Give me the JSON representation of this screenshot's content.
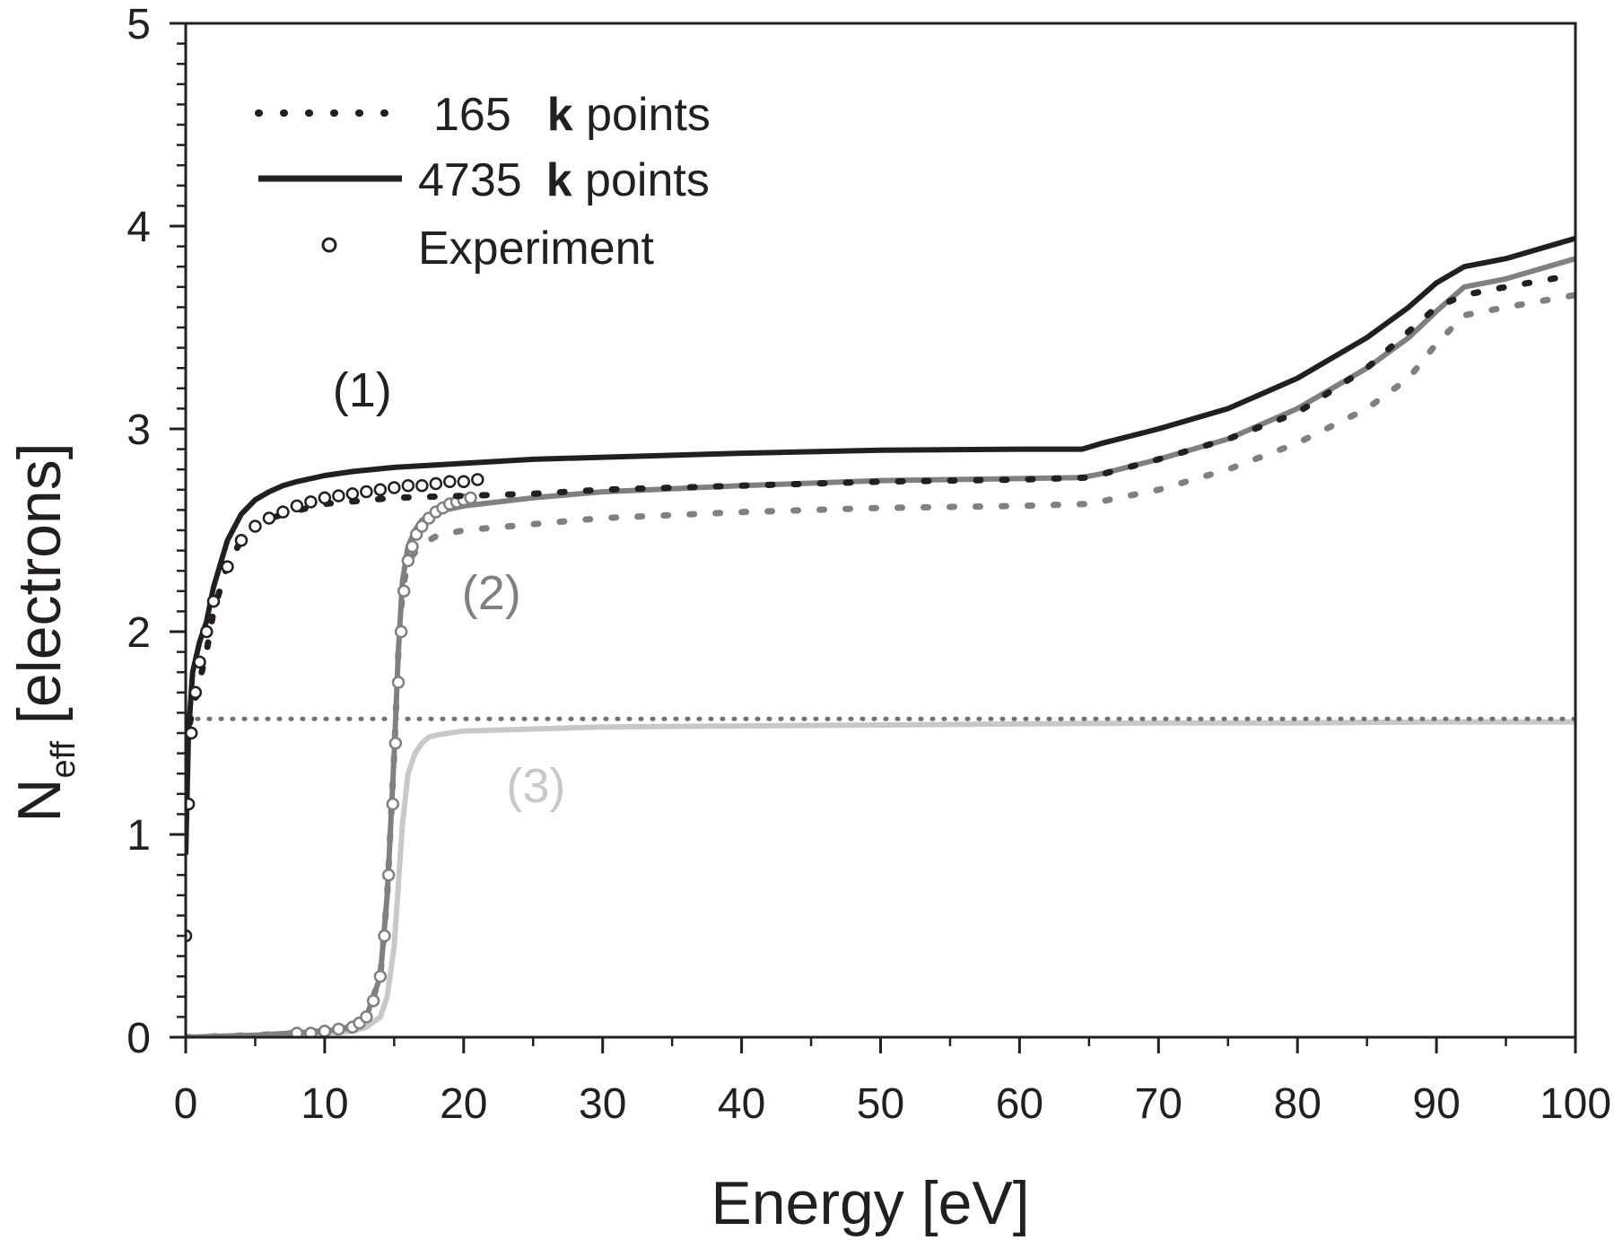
{
  "chart_data": {
    "type": "line",
    "title": "",
    "xlabel": "Energy [eV]",
    "ylabel": {
      "main": "N",
      "sub": "eff",
      "rest": " [electrons]"
    },
    "xlim": [
      0,
      100
    ],
    "ylim": [
      0,
      5
    ],
    "x_ticks": [
      "0",
      "10",
      "20",
      "30",
      "40",
      "50",
      "60",
      "70",
      "80",
      "90",
      "100"
    ],
    "y_ticks": [
      "0",
      "1",
      "2",
      "3",
      "4",
      "5"
    ],
    "grid": false,
    "legend": {
      "placement": "top-left",
      "entries": [
        {
          "count": "165",
          "bold": "k",
          "rest": " points",
          "style": "dotted"
        },
        {
          "count": "4735",
          "bold": "k",
          "rest": " points",
          "style": "solid"
        },
        {
          "count": "",
          "bold": "",
          "rest": "Experiment",
          "style": "markers"
        }
      ]
    },
    "annotations": [
      {
        "text": "(1)",
        "x": 12.7,
        "y": 3.11,
        "color": "#231f20"
      },
      {
        "text": "(2)",
        "x": 22.0,
        "y": 2.11,
        "color": "#808080"
      },
      {
        "text": "(3)",
        "x": 25.2,
        "y": 1.16,
        "color": "#c8c8c8"
      }
    ],
    "colors": {
      "black": "#231f20",
      "gray": "#808080",
      "lightgray": "#c8c8c8",
      "dotted_flat": "#707070"
    },
    "series": [
      {
        "group": "(1)",
        "style": "solid",
        "color": "#231f20",
        "x": [
          0,
          0.2,
          0.5,
          1,
          1.5,
          2,
          3,
          4,
          5,
          6,
          7,
          8,
          10,
          12,
          15,
          20,
          25,
          30,
          40,
          50,
          60,
          64.5,
          66,
          70,
          75,
          80,
          85,
          88,
          90,
          92,
          95,
          100
        ],
        "y": [
          0.9,
          1.5,
          1.8,
          1.95,
          2.05,
          2.22,
          2.45,
          2.58,
          2.65,
          2.69,
          2.72,
          2.74,
          2.77,
          2.79,
          2.81,
          2.83,
          2.85,
          2.86,
          2.88,
          2.895,
          2.9,
          2.9,
          2.93,
          3.0,
          3.1,
          3.25,
          3.45,
          3.6,
          3.72,
          3.8,
          3.84,
          3.94
        ]
      },
      {
        "group": "(1)",
        "style": "dotted",
        "color": "#231f20",
        "x": [
          0.3,
          0.8,
          1.5,
          2,
          3,
          4,
          5,
          7,
          10,
          15,
          20,
          25,
          30,
          40,
          50,
          60,
          65,
          70,
          75,
          80,
          85,
          88,
          90,
          92,
          95,
          100
        ],
        "y": [
          1.55,
          1.7,
          1.9,
          2.1,
          2.33,
          2.45,
          2.53,
          2.58,
          2.63,
          2.66,
          2.67,
          2.68,
          2.7,
          2.72,
          2.74,
          2.75,
          2.76,
          2.85,
          2.95,
          3.08,
          3.3,
          3.48,
          3.6,
          3.66,
          3.7,
          3.76
        ]
      },
      {
        "group": "(1)",
        "style": "markers",
        "color": "#231f20",
        "x": [
          0,
          0.2,
          0.4,
          0.7,
          1,
          1.5,
          2,
          3,
          4,
          5,
          6,
          7,
          8,
          9,
          10,
          11,
          12,
          13,
          14,
          15,
          16,
          17,
          18,
          19,
          20,
          21
        ],
        "y": [
          0.5,
          1.15,
          1.5,
          1.7,
          1.85,
          2.0,
          2.15,
          2.32,
          2.45,
          2.52,
          2.56,
          2.59,
          2.62,
          2.64,
          2.66,
          2.67,
          2.68,
          2.69,
          2.7,
          2.71,
          2.72,
          2.72,
          2.73,
          2.74,
          2.74,
          2.75
        ]
      },
      {
        "group": "(2)",
        "style": "solid",
        "color": "#808080",
        "x": [
          0,
          5,
          10,
          12,
          13,
          14,
          14.5,
          15,
          15.3,
          15.6,
          16,
          16.5,
          17,
          18,
          20,
          25,
          30,
          40,
          50,
          60,
          64.5,
          66,
          70,
          75,
          80,
          85,
          88,
          90,
          92,
          95,
          100
        ],
        "y": [
          0,
          0.01,
          0.03,
          0.05,
          0.1,
          0.3,
          0.7,
          1.4,
          1.9,
          2.25,
          2.42,
          2.5,
          2.55,
          2.59,
          2.62,
          2.66,
          2.69,
          2.72,
          2.745,
          2.755,
          2.76,
          2.78,
          2.85,
          2.95,
          3.1,
          3.3,
          3.45,
          3.58,
          3.7,
          3.74,
          3.84
        ]
      },
      {
        "group": "(2)",
        "style": "dotted",
        "color": "#808080",
        "x": [
          0,
          5,
          10,
          12,
          13,
          14,
          14.5,
          15,
          15.3,
          15.6,
          16,
          17,
          18,
          20,
          25,
          30,
          40,
          50,
          60,
          65,
          70,
          75,
          80,
          85,
          88,
          90,
          92,
          95,
          100
        ],
        "y": [
          0,
          0.01,
          0.03,
          0.05,
          0.1,
          0.3,
          0.7,
          1.4,
          1.9,
          2.2,
          2.35,
          2.43,
          2.47,
          2.5,
          2.53,
          2.56,
          2.59,
          2.61,
          2.62,
          2.63,
          2.7,
          2.8,
          2.93,
          3.1,
          3.25,
          3.42,
          3.56,
          3.6,
          3.66
        ]
      },
      {
        "group": "(2)",
        "style": "markers",
        "color": "#808080",
        "x": [
          8,
          9,
          10,
          11,
          12,
          12.5,
          13,
          13.5,
          14,
          14.3,
          14.6,
          14.9,
          15.1,
          15.3,
          15.5,
          15.7,
          16,
          16.3,
          16.6,
          17,
          17.5,
          18,
          18.5,
          19,
          19.5,
          20,
          20.5
        ],
        "y": [
          0.02,
          0.02,
          0.03,
          0.04,
          0.05,
          0.07,
          0.1,
          0.18,
          0.3,
          0.5,
          0.8,
          1.15,
          1.45,
          1.75,
          2.0,
          2.2,
          2.35,
          2.42,
          2.48,
          2.52,
          2.56,
          2.59,
          2.61,
          2.63,
          2.64,
          2.65,
          2.66
        ]
      },
      {
        "group": "(3)",
        "style": "solid",
        "color": "#c8c8c8",
        "x": [
          0,
          5,
          10,
          12,
          13,
          14,
          14.5,
          15,
          15.3,
          15.6,
          16,
          16.5,
          17,
          17.5,
          18,
          19,
          20,
          25,
          30,
          40,
          50,
          60,
          70,
          80,
          90,
          100
        ],
        "y": [
          0,
          0.01,
          0.02,
          0.03,
          0.05,
          0.1,
          0.2,
          0.45,
          0.75,
          1.05,
          1.3,
          1.4,
          1.45,
          1.48,
          1.49,
          1.5,
          1.51,
          1.52,
          1.53,
          1.535,
          1.54,
          1.545,
          1.55,
          1.55,
          1.555,
          1.555
        ]
      },
      {
        "group": "(3)",
        "style": "dotted",
        "color": "#707070",
        "x": [
          0,
          100
        ],
        "y": [
          1.57,
          1.57
        ]
      }
    ]
  }
}
